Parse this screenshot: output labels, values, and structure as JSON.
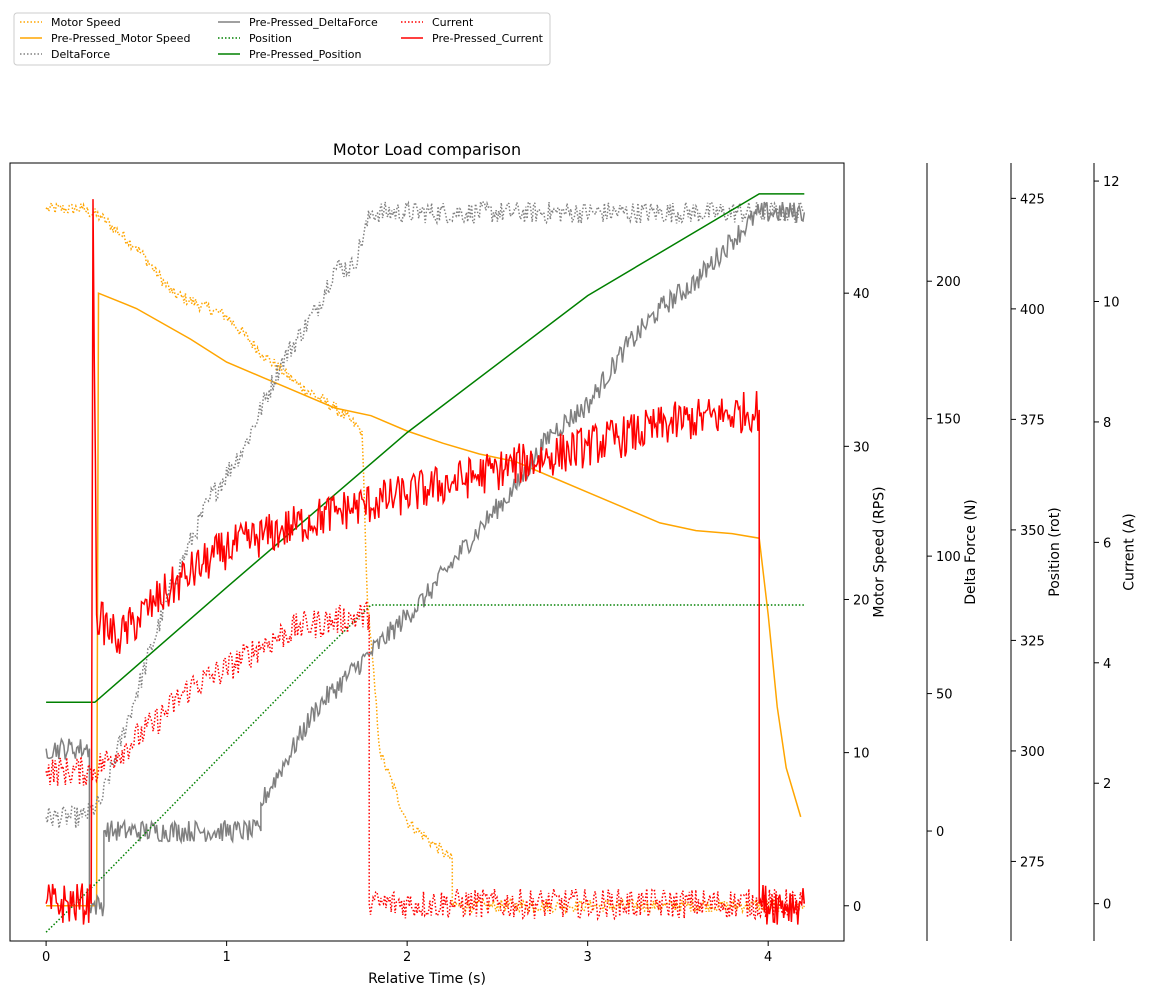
{
  "chart_data": {
    "type": "line",
    "title": "Motor Load comparison",
    "xlabel": "Relative Time (s)",
    "xlim": [
      -0.2,
      4.42
    ],
    "xticks": [
      0,
      1,
      2,
      3,
      4
    ],
    "grid": false,
    "legend_position": "top-left, outside plot, 3 columns",
    "axes": [
      {
        "id": "speed",
        "label": "Motor Speed (RPS)",
        "ylim": [
          -2.3,
          48.5
        ],
        "ticks": [
          0,
          10,
          20,
          30,
          40
        ]
      },
      {
        "id": "force",
        "label": "Delta Force (N)",
        "ylim": [
          -40,
          243
        ],
        "ticks": [
          0,
          50,
          100,
          150,
          200
        ]
      },
      {
        "id": "position",
        "label": "Position (rot)",
        "ylim": [
          257,
          433
        ],
        "ticks": [
          275,
          300,
          325,
          350,
          375,
          400,
          425
        ]
      },
      {
        "id": "current",
        "label": "Current (A)",
        "ylim": [
          -0.62,
          12.3
        ],
        "ticks": [
          0,
          2,
          4,
          6,
          8,
          10,
          12
        ]
      }
    ],
    "series": [
      {
        "name": "Motor Speed",
        "axis": "speed",
        "color": "#ffa500",
        "dash": "dotted",
        "noise": 0.4,
        "x": [
          0,
          0.2,
          0.3,
          0.5,
          0.7,
          1.0,
          1.2,
          1.4,
          1.6,
          1.75,
          1.78,
          1.85,
          2.0,
          2.15,
          2.25,
          2.25,
          4.2
        ],
        "y": [
          45.5,
          45.5,
          45.0,
          43.0,
          40.0,
          38.5,
          36.0,
          34.0,
          32.5,
          31.0,
          20.0,
          10.0,
          5.5,
          4.0,
          3.0,
          0,
          0
        ]
      },
      {
        "name": "Pre-Pressed_Motor Speed",
        "axis": "speed",
        "color": "#ffa500",
        "dash": "solid",
        "noise": 0,
        "x": [
          0,
          0.24,
          0.24,
          0.28,
          0.29,
          0.5,
          0.8,
          1.0,
          1.2,
          1.4,
          1.6,
          1.8,
          2.0,
          2.2,
          2.4,
          2.6,
          2.8,
          3.0,
          3.2,
          3.4,
          3.6,
          3.8,
          3.95,
          4.0,
          4.05,
          4.1,
          4.18
        ],
        "y": [
          0,
          0,
          0,
          0,
          40.0,
          39.0,
          37.0,
          35.5,
          34.5,
          33.5,
          32.5,
          32.0,
          31.0,
          30.2,
          29.5,
          29.0,
          28.0,
          27.0,
          26.0,
          25.0,
          24.5,
          24.3,
          24.0,
          19.0,
          13.0,
          9.0,
          5.8
        ]
      },
      {
        "name": "DeltaForce",
        "axis": "force",
        "color": "#808080",
        "dash": "dotted",
        "noise": 4,
        "x": [
          0,
          0.2,
          0.3,
          0.5,
          0.7,
          0.9,
          1.1,
          1.3,
          1.5,
          1.6,
          1.7,
          1.8,
          1.8,
          4.2
        ],
        "y": [
          5,
          5,
          10,
          50,
          90,
          120,
          140,
          170,
          190,
          205,
          205,
          225,
          225,
          225
        ]
      },
      {
        "name": "Pre-Pressed_DeltaForce",
        "axis": "force",
        "color": "#808080",
        "dash": "solid",
        "noise": 4,
        "x": [
          0,
          0.24,
          0.24,
          0.32,
          0.32,
          1.19,
          1.19,
          1.5,
          1.8,
          2.1,
          2.4,
          2.6,
          2.8,
          3.0,
          3.2,
          3.4,
          3.6,
          3.8,
          3.95,
          3.95,
          4.2
        ],
        "y": [
          30,
          30,
          -27,
          -27,
          0,
          0,
          10,
          45,
          65,
          85,
          110,
          125,
          145,
          155,
          175,
          190,
          200,
          215,
          225,
          225,
          225
        ]
      },
      {
        "name": "Position",
        "axis": "position",
        "color": "#008000",
        "dash": "dotted",
        "noise": 0,
        "x": [
          0,
          0.3,
          1.5,
          1.8,
          1.8,
          4.2
        ],
        "y": [
          259,
          271,
          321,
          333,
          333,
          333
        ]
      },
      {
        "name": "Pre-Pressed_Position",
        "axis": "position",
        "color": "#008000",
        "dash": "solid",
        "noise": 0,
        "x": [
          0,
          0.27,
          1.0,
          2.0,
          3.0,
          3.95,
          4.2
        ],
        "y": [
          311,
          311,
          337,
          372,
          403,
          426,
          426
        ]
      },
      {
        "name": "Current",
        "axis": "current",
        "color": "#ff0000",
        "dash": "dotted",
        "noise": 0.25,
        "x": [
          0,
          0.25,
          0.4,
          0.6,
          0.8,
          1.0,
          1.2,
          1.4,
          1.6,
          1.79,
          1.79,
          4.2
        ],
        "y": [
          2.2,
          2.2,
          2.5,
          3.0,
          3.6,
          3.9,
          4.3,
          4.6,
          4.7,
          4.8,
          0,
          0
        ]
      },
      {
        "name": "Pre-Pressed_Current",
        "axis": "current",
        "color": "#ff0000",
        "dash": "solid",
        "noise": 0.35,
        "x": [
          0,
          0.25,
          0.26,
          0.28,
          0.3,
          0.4,
          0.6,
          0.8,
          1.0,
          1.3,
          1.6,
          2.0,
          2.5,
          3.0,
          3.5,
          3.95,
          3.95,
          4.2
        ],
        "y": [
          0,
          0,
          11.7,
          4.8,
          4.7,
          4.4,
          5.0,
          5.5,
          5.9,
          6.2,
          6.5,
          6.8,
          7.2,
          7.6,
          8.0,
          8.2,
          0,
          0
        ]
      }
    ]
  }
}
